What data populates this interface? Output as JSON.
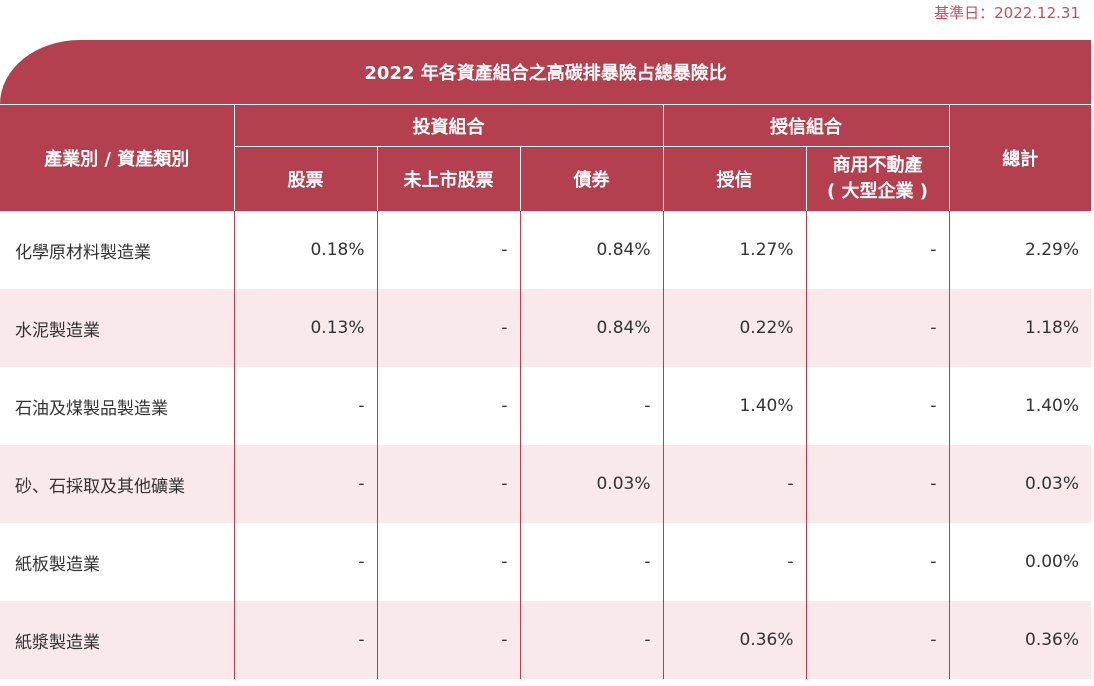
{
  "base_date": "基準日：2022.12.31",
  "table": {
    "title": "2022 年各資產組合之高碳排暴險占總暴險比",
    "header": {
      "category": "產業別 / 資產類別",
      "investment_group": "投資組合",
      "credit_group": "授信組合",
      "total": "總計",
      "sub": {
        "stocks": "股票",
        "unlisted_stocks": "未上市股票",
        "bonds": "債券",
        "credit": "授信",
        "real_estate_line1": "商用不動產",
        "real_estate_line2": "( 大型企業 )"
      }
    },
    "rows": [
      {
        "industry": "化學原材料製造業",
        "cells": [
          "0.18%",
          "-",
          "0.84%",
          "1.27%",
          "-",
          "2.29%"
        ]
      },
      {
        "industry": "水泥製造業",
        "cells": [
          "0.13%",
          "-",
          "0.84%",
          "0.22%",
          "-",
          "1.18%"
        ]
      },
      {
        "industry": "石油及煤製品製造業",
        "cells": [
          "-",
          "-",
          "-",
          "1.40%",
          "-",
          "1.40%"
        ]
      },
      {
        "industry": "砂、石採取及其他礦業",
        "cells": [
          "-",
          "-",
          "0.03%",
          "-",
          "-",
          "0.03%"
        ]
      },
      {
        "industry": "紙板製造業",
        "cells": [
          "-",
          "-",
          "-",
          "-",
          "-",
          "0.00%"
        ]
      },
      {
        "industry": "紙漿製造業",
        "cells": [
          "-",
          "-",
          "-",
          "0.36%",
          "-",
          "0.36%"
        ]
      }
    ]
  },
  "colors": {
    "header_bg": "#b4404f",
    "row_alt_bg": "#f9e9ea",
    "date_text": "#c14f5e"
  }
}
